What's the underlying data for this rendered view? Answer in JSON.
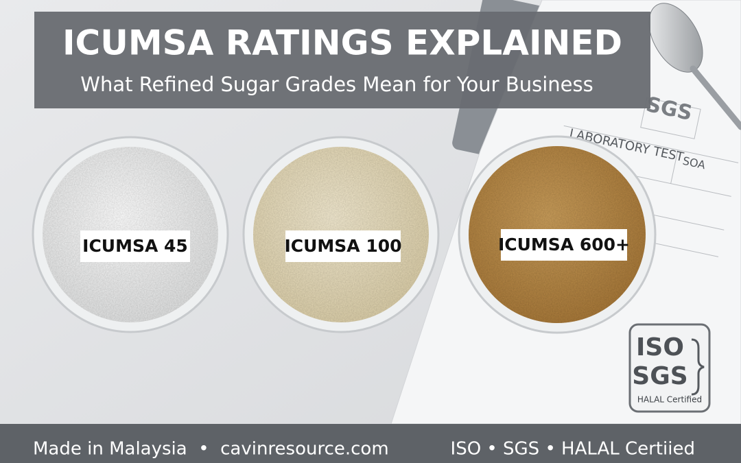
{
  "header": {
    "title": "ICUMSA RATINGS EXPLAINED",
    "subtitle": "What Refined Sugar Grades Mean for Your Business"
  },
  "samples": [
    {
      "label": "ICUMSA 45"
    },
    {
      "label": "ICUMSA 100"
    },
    {
      "label": "ICUMSA 600+"
    }
  ],
  "paper": {
    "logo": "SGS",
    "heading": "LABORATORY TEST",
    "field": "SOA"
  },
  "badge": {
    "line1": "ISO",
    "line2": "SGS",
    "caption": "HALAL Certified"
  },
  "footer": {
    "left": "Made in Malaysia  •  cavinresource.com",
    "right": "ISO • SGS • HALAL Certiied"
  }
}
